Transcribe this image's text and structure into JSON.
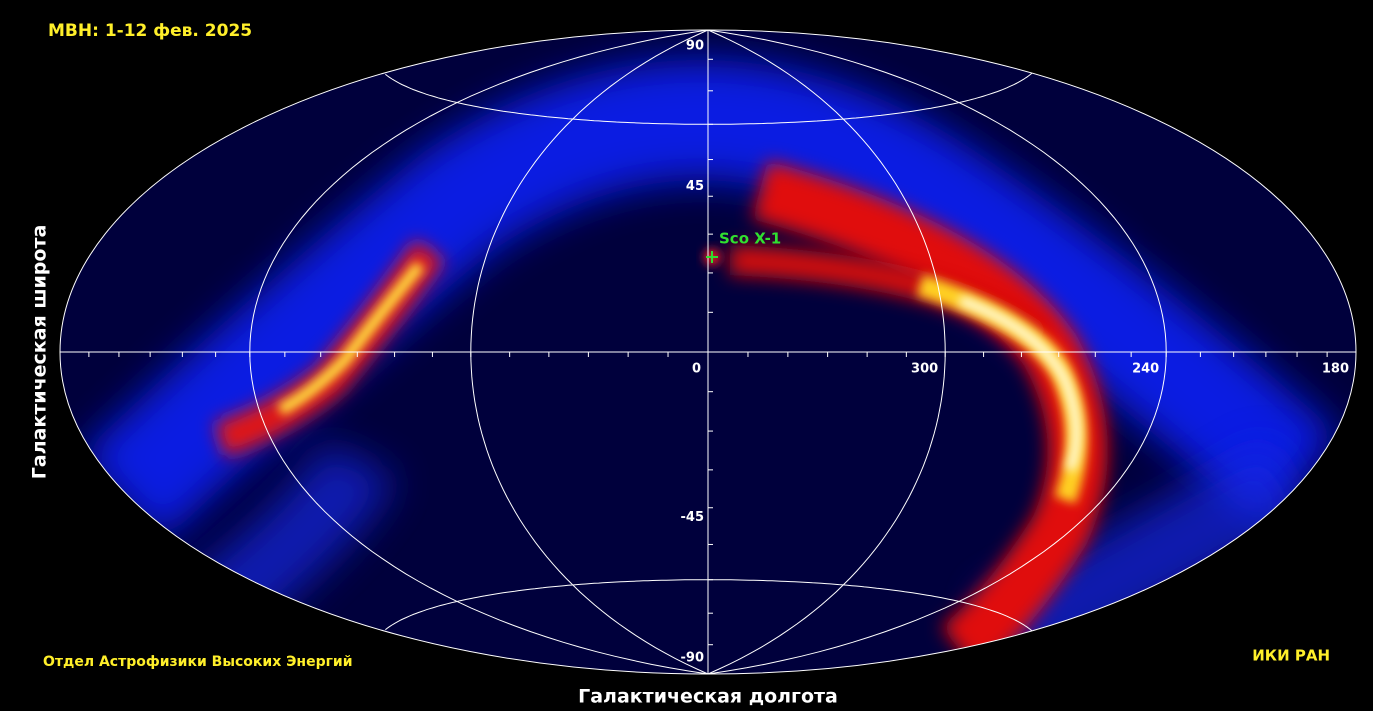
{
  "title": "МВН: 1-12 фев. 2025",
  "x_axis_label": "Галактическая долгота",
  "y_axis_label": "Галактическая широта",
  "latitude_ticks": [
    90,
    45,
    -45,
    -90
  ],
  "longitude_ticks": [
    0,
    300,
    240,
    180
  ],
  "source_label": "Sco X-1",
  "footer_left": "Отдел Астрофизики Высоких Энергий",
  "footer_right": "ИКИ РАН"
}
